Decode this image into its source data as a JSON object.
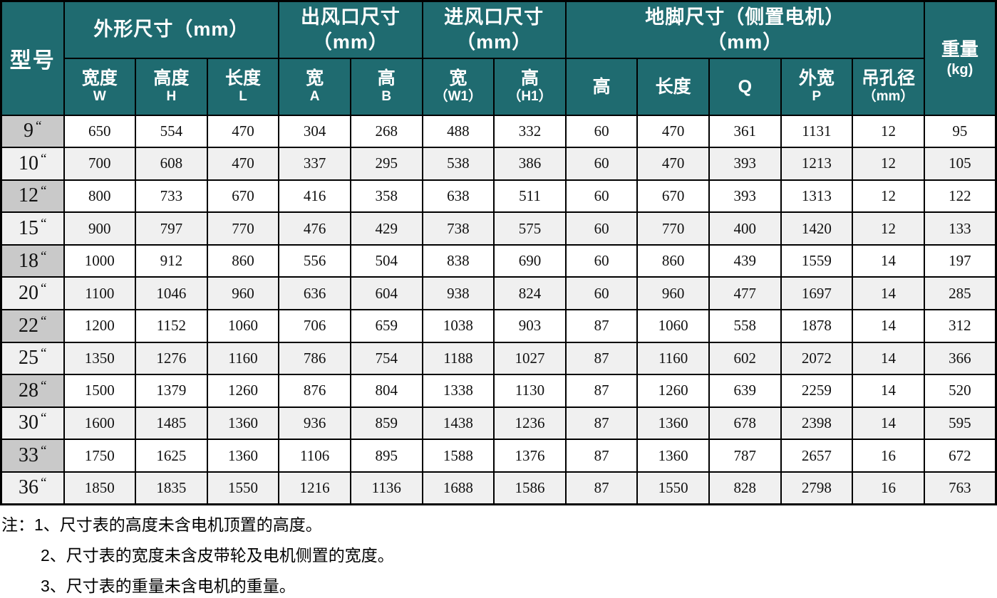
{
  "table": {
    "model_unit": "“",
    "header": {
      "model_label": "型号",
      "groups": [
        {
          "label": "外形尺寸（mm）",
          "span": 3
        },
        {
          "label": "出风口尺寸\n（mm）",
          "span": 2
        },
        {
          "label": "进风口尺寸\n（mm）",
          "span": 2
        },
        {
          "label": "地脚尺寸（侧置电机）\n（mm）",
          "span": 5
        }
      ],
      "weight": {
        "line1": "重量",
        "line2": "(kg)"
      },
      "subheaders": [
        {
          "main": "宽度",
          "sub": "W"
        },
        {
          "main": "高度",
          "sub": "H"
        },
        {
          "main": "长度",
          "sub": "L"
        },
        {
          "main": "宽",
          "sub": "A"
        },
        {
          "main": "高",
          "sub": "B"
        },
        {
          "main": "宽",
          "sub": "（W1）"
        },
        {
          "main": "高",
          "sub": "（H1）"
        },
        {
          "main": "高",
          "sub": ""
        },
        {
          "main": "长度",
          "sub": ""
        },
        {
          "main": "Q",
          "sub": ""
        },
        {
          "main": "外宽",
          "sub": "P"
        },
        {
          "main": "吊孔径",
          "sub": "（mm）"
        }
      ]
    },
    "rows": [
      {
        "model": "9",
        "values": [
          650,
          554,
          470,
          304,
          268,
          488,
          332,
          60,
          470,
          361,
          1131,
          12,
          95
        ]
      },
      {
        "model": "10",
        "values": [
          700,
          608,
          470,
          337,
          295,
          538,
          386,
          60,
          470,
          393,
          1213,
          12,
          105
        ]
      },
      {
        "model": "12",
        "values": [
          800,
          733,
          670,
          416,
          358,
          638,
          511,
          60,
          670,
          393,
          1313,
          12,
          122
        ]
      },
      {
        "model": "15",
        "values": [
          900,
          797,
          770,
          476,
          429,
          738,
          575,
          60,
          770,
          400,
          1420,
          12,
          133
        ]
      },
      {
        "model": "18",
        "values": [
          1000,
          912,
          860,
          556,
          504,
          838,
          690,
          60,
          860,
          439,
          1559,
          14,
          197
        ]
      },
      {
        "model": "20",
        "values": [
          1100,
          1046,
          960,
          636,
          604,
          938,
          824,
          60,
          960,
          477,
          1697,
          14,
          285
        ]
      },
      {
        "model": "22",
        "values": [
          1200,
          1152,
          1060,
          706,
          659,
          1038,
          903,
          87,
          1060,
          558,
          1878,
          14,
          312
        ]
      },
      {
        "model": "25",
        "values": [
          1350,
          1276,
          1160,
          786,
          754,
          1188,
          1027,
          87,
          1160,
          602,
          2072,
          14,
          366
        ]
      },
      {
        "model": "28",
        "values": [
          1500,
          1379,
          1260,
          876,
          804,
          1338,
          1130,
          87,
          1260,
          639,
          2259,
          14,
          520
        ]
      },
      {
        "model": "30",
        "values": [
          1600,
          1485,
          1360,
          936,
          859,
          1438,
          1236,
          87,
          1360,
          678,
          2398,
          14,
          595
        ]
      },
      {
        "model": "33",
        "values": [
          1750,
          1625,
          1360,
          1106,
          895,
          1588,
          1376,
          87,
          1360,
          787,
          2657,
          16,
          672
        ]
      },
      {
        "model": "36",
        "values": [
          1850,
          1835,
          1550,
          1216,
          1136,
          1688,
          1586,
          87,
          1550,
          828,
          2798,
          16,
          763
        ]
      }
    ]
  },
  "notes": {
    "prefix": "注：",
    "items": [
      "1、尺寸表的高度未含电机顶置的高度。",
      "2、尺寸表的宽度未含皮带轮及电机侧置的宽度。",
      "3、尺寸表的重量未含电机的重量。"
    ]
  },
  "colors": {
    "header_bg": "#1f6b70",
    "header_text": "#ffffff",
    "model_cell_dark": "#c9c9c9",
    "stripe_light": "#f0f0f0",
    "row_white": "#ffffff",
    "grid_border": "#000000"
  }
}
